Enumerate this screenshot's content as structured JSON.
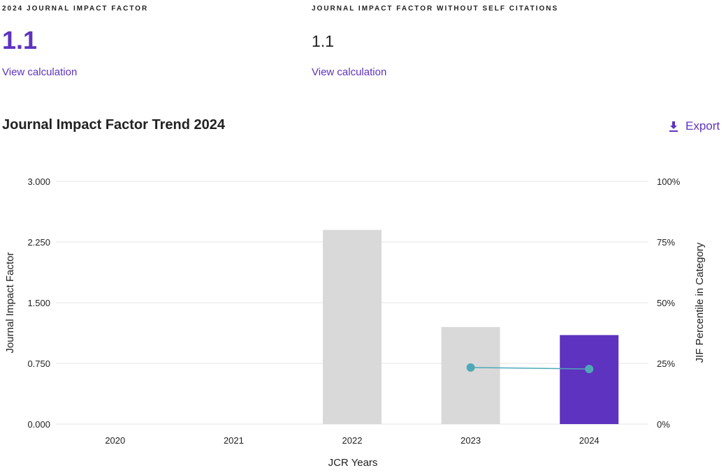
{
  "metrics": [
    {
      "label": "2024 JOURNAL IMPACT FACTOR",
      "value": "1.1",
      "link": "View calculation"
    },
    {
      "label": "JOURNAL IMPACT FACTOR WITHOUT SELF CITATIONS",
      "value": "1.1",
      "link": "View calculation"
    }
  ],
  "section": {
    "title": "Journal Impact Factor Trend 2024",
    "export_label": "Export"
  },
  "colors": {
    "accent": "#5e33bf",
    "bar_gray": "#d9d9d9",
    "line": "#4fa8b8"
  },
  "chart_data": {
    "type": "bar",
    "categories": [
      "2020",
      "2021",
      "2022",
      "2023",
      "2024"
    ],
    "series": [
      {
        "name": "Journal Impact Factor",
        "axis": "left",
        "values": [
          null,
          null,
          2.4,
          1.2,
          1.1
        ]
      },
      {
        "name": "JIF Percentile in Category",
        "type": "line",
        "axis": "right",
        "values": [
          null,
          null,
          null,
          23.3,
          22.7
        ]
      }
    ],
    "xlabel": "JCR Years",
    "ylabel": "Journal Impact Factor",
    "y2label": "JIF Percentile in Category",
    "ylim": [
      0,
      3
    ],
    "y2lim": [
      0,
      100
    ],
    "yticks": [
      "0.000",
      "0.750",
      "1.500",
      "2.250",
      "3.000"
    ],
    "y2ticks": [
      "0%",
      "25%",
      "50%",
      "75%",
      "100%"
    ],
    "grid": true
  }
}
